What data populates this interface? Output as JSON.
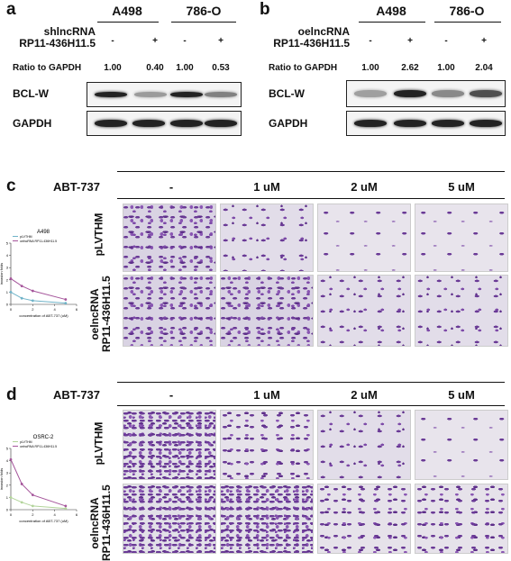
{
  "panel_a": {
    "label": "a",
    "cell_lines": [
      "A498",
      "786-O"
    ],
    "treatment_label": [
      "shlncRNA",
      "RP11-436H11.5"
    ],
    "treatments": [
      "-",
      "+",
      "-",
      "+"
    ],
    "ratio_label": "Ratio to GAPDH",
    "ratios": [
      "1.00",
      "0.40",
      "1.00",
      "0.53"
    ],
    "blots": [
      "BCL-W",
      "GAPDH"
    ],
    "bclw_intensity": [
      1.0,
      0.4,
      1.0,
      0.53
    ]
  },
  "panel_b": {
    "label": "b",
    "cell_lines": [
      "A498",
      "786-O"
    ],
    "treatment_label": [
      "oelncRNA",
      "RP11-436H11.5"
    ],
    "treatments": [
      "-",
      "+",
      "-",
      "+"
    ],
    "ratio_label": "Ratio to GAPDH",
    "ratios": [
      "1.00",
      "2.62",
      "1.00",
      "2.04"
    ],
    "blots": [
      "BCL-W",
      "GAPDH"
    ],
    "bclw_intensity": [
      0.38,
      1.0,
      0.49,
      0.78
    ]
  },
  "panel_c": {
    "label": "c",
    "drug": "ABT-737",
    "conditions": [
      "-",
      "1 uM",
      "2 uM",
      "5 uM"
    ],
    "rows": [
      [
        "pLVTHM"
      ],
      [
        "oelncRNA",
        "RP11-436H11.5"
      ]
    ],
    "chart_data": {
      "type": "line",
      "title": "A498",
      "xlabel": "concentration of ABT-737 (uM)",
      "ylabel": "invasion folds",
      "x": [
        0,
        1,
        2,
        5
      ],
      "xlim": [
        0,
        6
      ],
      "ylim": [
        0,
        5
      ],
      "xticks": [
        "0",
        "2",
        "4",
        "6"
      ],
      "yticks": [
        "0",
        "1",
        "2",
        "3",
        "4",
        "5"
      ],
      "series": [
        {
          "name": "pLVTHM",
          "values": [
            1.0,
            0.5,
            0.3,
            0.1
          ],
          "color": "#6fb3c8"
        },
        {
          "name": "oelncRNA RP11-436H11.5",
          "values": [
            2.1,
            1.5,
            1.1,
            0.4
          ],
          "color": "#a5559b"
        }
      ]
    }
  },
  "panel_d": {
    "label": "d",
    "drug": "ABT-737",
    "conditions": [
      "-",
      "1 uM",
      "2 uM",
      "5 uM"
    ],
    "rows": [
      [
        "pLVTHM"
      ],
      [
        "oelncRNA",
        "RP11-436H11.5"
      ]
    ],
    "chart_data": {
      "type": "line",
      "title": "OSRC-2",
      "xlabel": "concentration of ABT-737 (uM)",
      "ylabel": "invasion folds",
      "x": [
        0,
        1,
        2,
        5
      ],
      "xlim": [
        0,
        6
      ],
      "ylim": [
        0,
        5
      ],
      "xticks": [
        "0",
        "2",
        "4",
        "6"
      ],
      "yticks": [
        "0",
        "1",
        "2",
        "3",
        "4",
        "5"
      ],
      "series": [
        {
          "name": "pLVTHM",
          "values": [
            1.0,
            0.6,
            0.3,
            0.1
          ],
          "color": "#b2d49a"
        },
        {
          "name": "oelncRNA RP11-436H11.5",
          "values": [
            4.1,
            2.1,
            1.2,
            0.3
          ],
          "color": "#a5559b"
        }
      ]
    }
  }
}
